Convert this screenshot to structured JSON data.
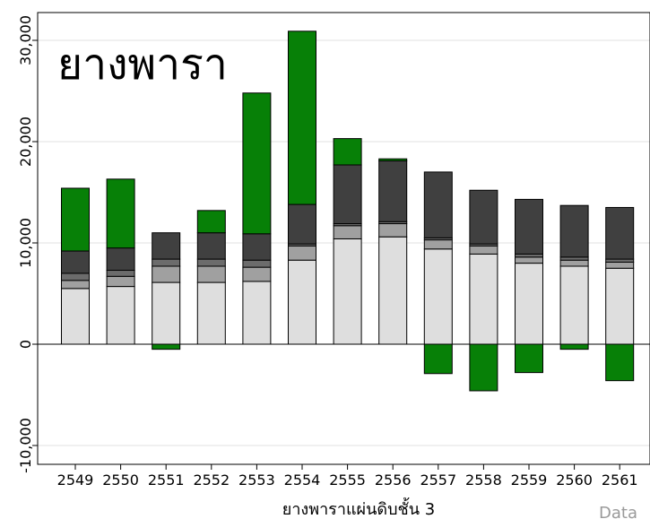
{
  "chart_data": {
    "type": "bar",
    "stacked": true,
    "title": "ยางพารา",
    "xlabel": "ยางพาราแผ่นดิบชั้น 3",
    "ylabel": "",
    "ylim": [
      -12000,
      33000
    ],
    "yticks": [
      -10000,
      0,
      10000,
      20000,
      30000
    ],
    "ytick_labels": [
      "-10,000",
      "0",
      "10,000",
      "20,000",
      "30,000"
    ],
    "grid": true,
    "source_text": "Data",
    "categories": [
      "2549",
      "2550",
      "2551",
      "2552",
      "2553",
      "2554",
      "2555",
      "2556",
      "2557",
      "2558",
      "2559",
      "2560",
      "2561"
    ],
    "series": [
      {
        "color": "#dedede",
        "values": [
          5500,
          5700,
          6100,
          6100,
          6200,
          8300,
          10400,
          10600,
          9400,
          8900,
          8000,
          7700,
          7500
        ]
      },
      {
        "color": "#a0a0a0",
        "values": [
          800,
          1000,
          1600,
          1600,
          1400,
          1400,
          1300,
          1300,
          900,
          800,
          600,
          600,
          600
        ]
      },
      {
        "color": "#6c6c6c",
        "values": [
          700,
          600,
          700,
          700,
          700,
          200,
          200,
          200,
          200,
          200,
          300,
          300,
          300
        ]
      },
      {
        "color": "#404040",
        "values": [
          2200,
          2200,
          2600,
          2600,
          2600,
          3900,
          5800,
          6000,
          6500,
          5300,
          5400,
          5100,
          5100
        ]
      },
      {
        "color": "#078007",
        "values": [
          6200,
          6800,
          -500,
          2200,
          13900,
          17100,
          2600,
          200,
          -2900,
          -4600,
          -2800,
          -500,
          -3600
        ]
      }
    ]
  }
}
